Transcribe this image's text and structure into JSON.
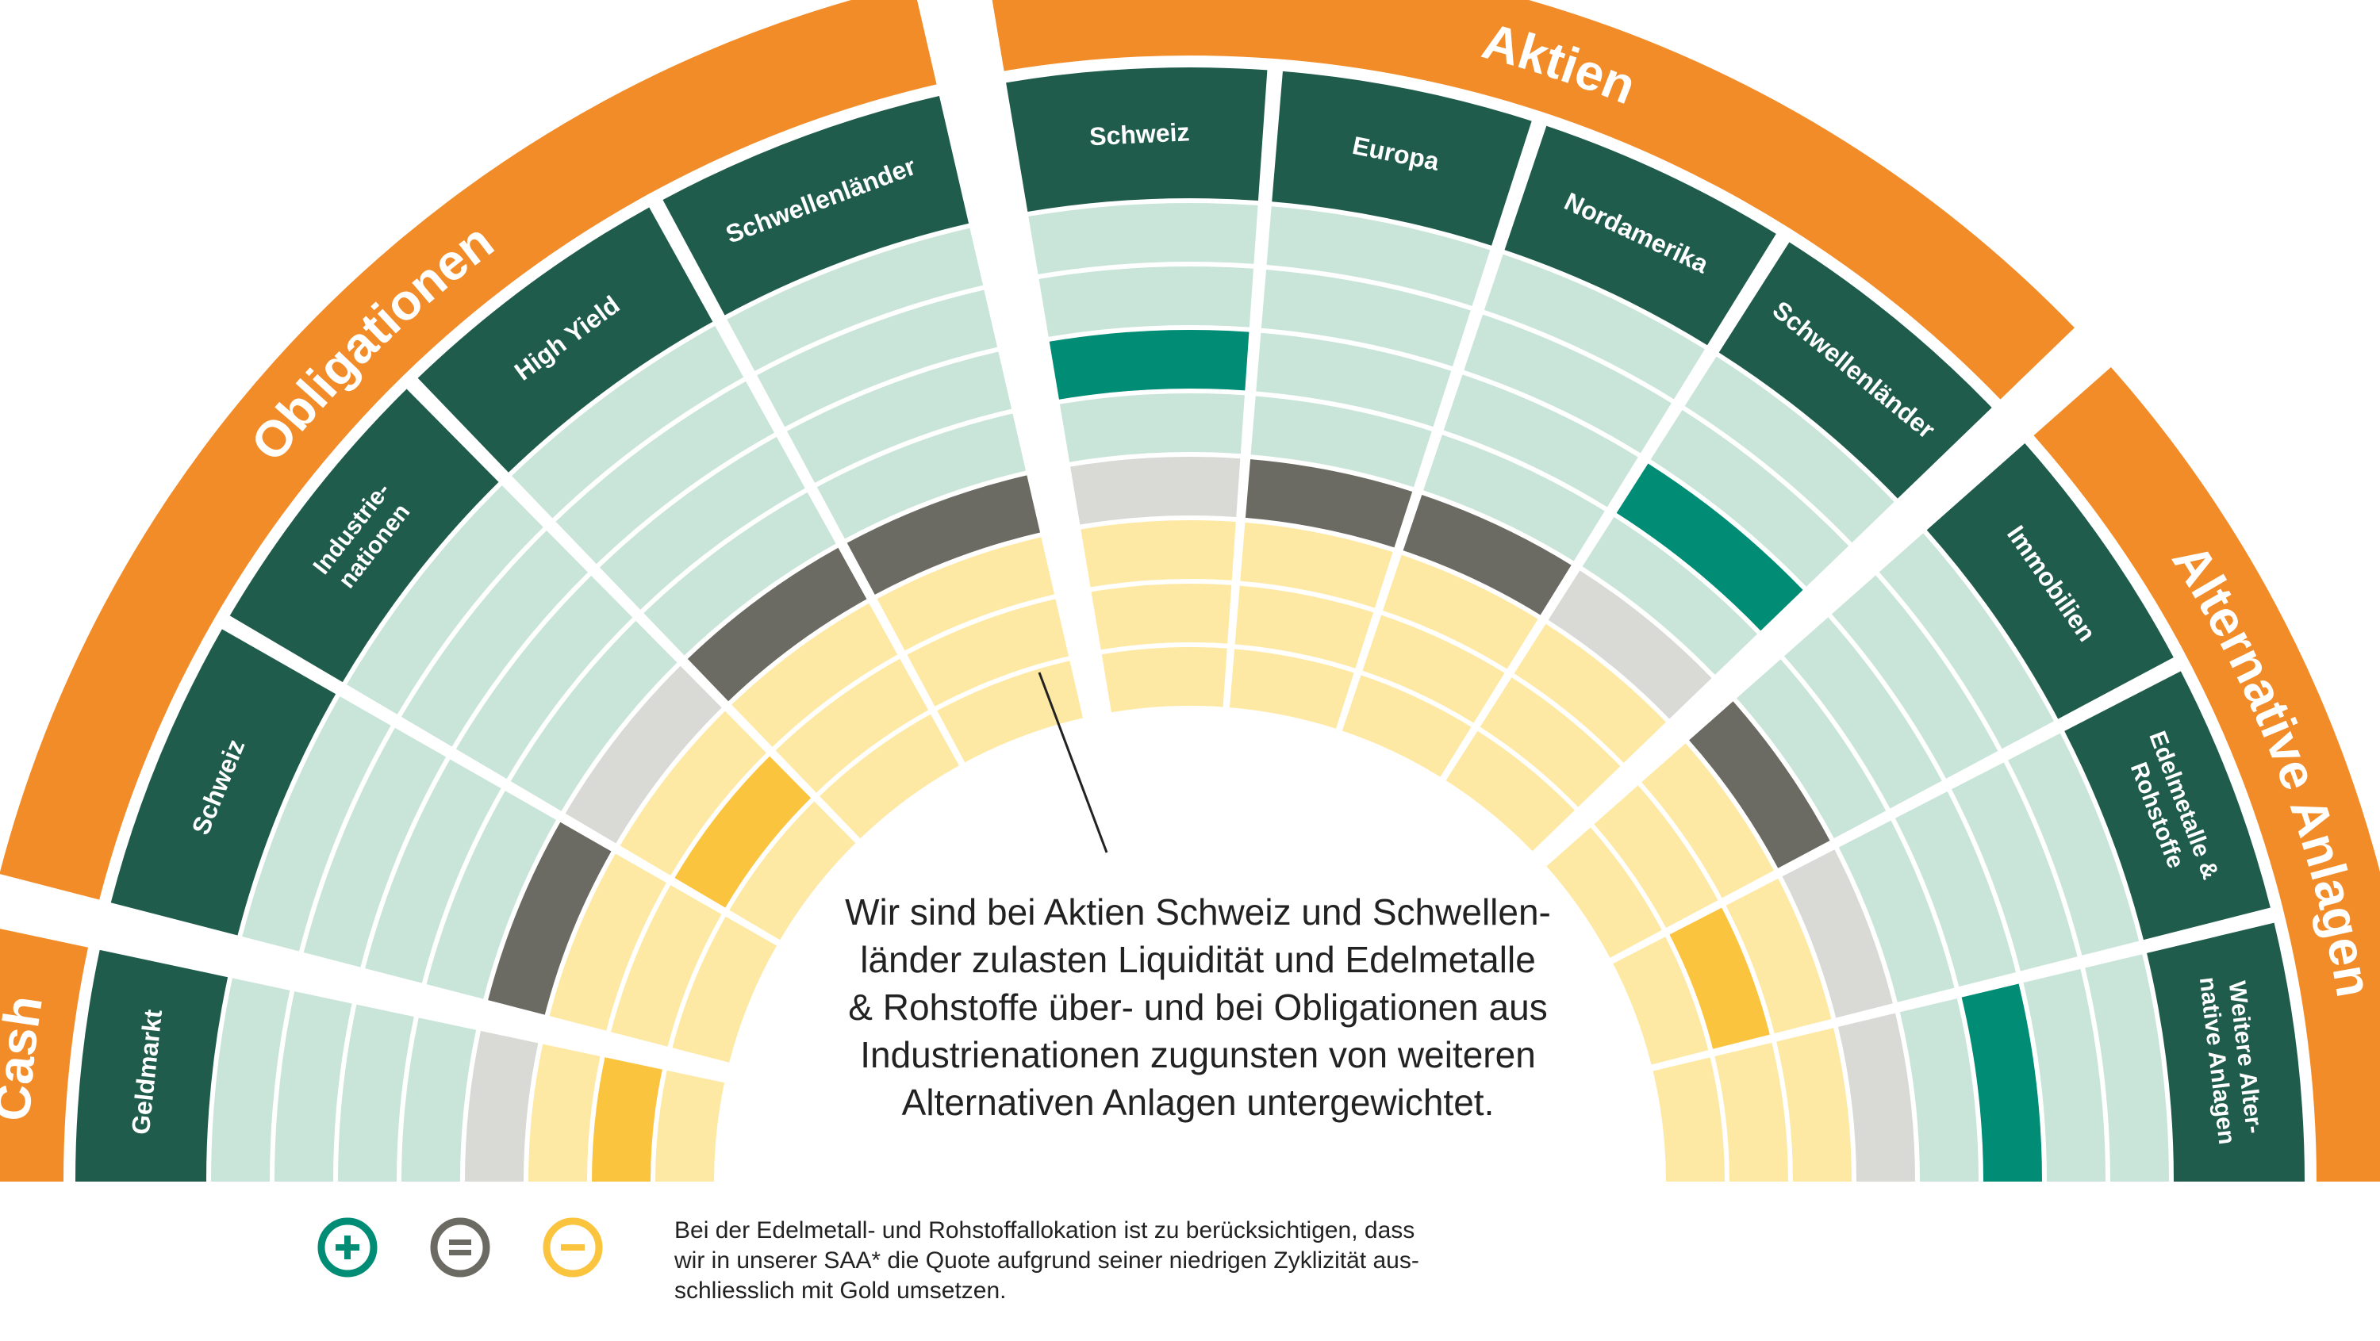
{
  "colors": {
    "category": "#F28C28",
    "subcategory": "#1F5C4B",
    "overweight_strong": "#008C75",
    "overweight_light": "#C9E4D9",
    "neutral": "#6B6B63",
    "neutral_light": "#D9D9D6",
    "underweight_strong": "#FBC43F",
    "underweight_light": "#FDE9A3",
    "pointer": "#222222"
  },
  "legend_icons": [
    "plus-icon",
    "equals-icon",
    "minus-icon"
  ],
  "categories": [
    {
      "label": "Cash",
      "subs": [
        {
          "label": "Geldmarkt",
          "position": 5
        }
      ]
    },
    {
      "label": "Obligationen",
      "subs": [
        {
          "label": "Schweiz",
          "position": 4
        },
        {
          "label": "Industrie-\nnationen",
          "position": 5
        },
        {
          "label": "High Yield",
          "position": 4
        },
        {
          "label": "Schwellenländer",
          "position": 4
        }
      ]
    },
    {
      "label": "Aktien",
      "subs": [
        {
          "label": "Schweiz",
          "position": 2
        },
        {
          "label": "Europa",
          "position": 4
        },
        {
          "label": "Nordamerika",
          "position": 4
        },
        {
          "label": "Schwellenländer",
          "position": 2
        }
      ]
    },
    {
      "label": "Alternative Anlagen",
      "subs": [
        {
          "label": "Immobilien",
          "position": 4
        },
        {
          "label": "Edelmetalle &\nRohstoffe",
          "position": 5
        },
        {
          "label": "Weitere Alter-\nnative Anlagen",
          "position": 2
        }
      ]
    }
  ],
  "statement": [
    "Wir sind bei Aktien Schweiz und Schwellen-",
    "länder zulasten Liquidität und Edelmetalle",
    "& Rohstoffe über- und bei Obligationen aus",
    "Industrienationen zugunsten von weiteren",
    "Alternativen Anlagen untergewichtet."
  ],
  "footnote": [
    "Bei der Edelmetall- und Rohstoffallokation ist zu berücksichtigen, dass",
    "wir in unserer SAA* die Quote aufgrund seiner niedrigen Zyklizität aus-",
    "schliesslich mit Gold umsetzen."
  ]
}
